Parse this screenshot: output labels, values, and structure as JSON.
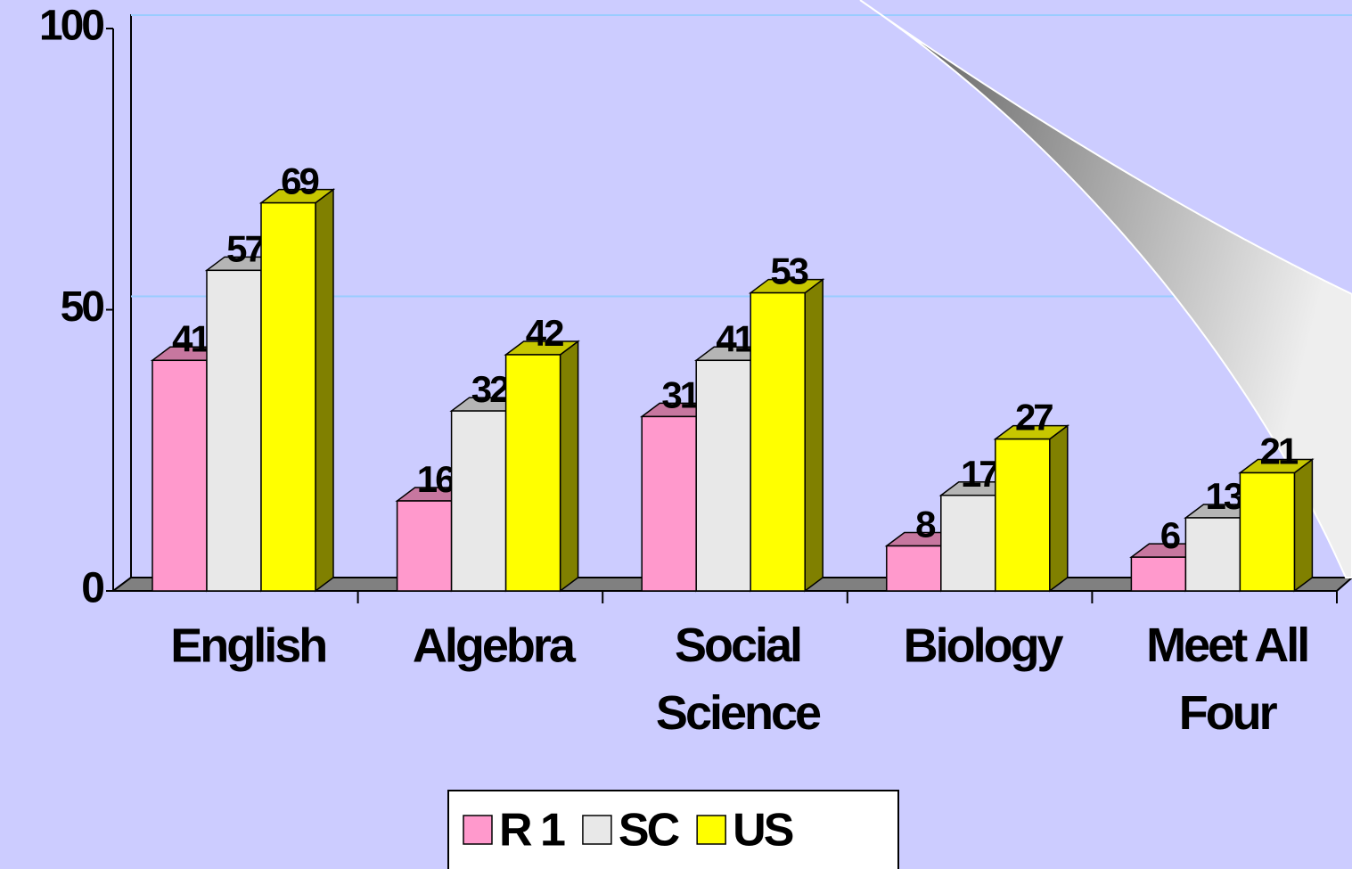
{
  "chart_data": {
    "type": "bar3d",
    "categories": [
      "English",
      "Algebra",
      "Social Science",
      "Biology",
      "Meet All Four"
    ],
    "series": [
      {
        "name": "R 1",
        "color": "#ff99cc",
        "values": [
          41,
          16,
          31,
          8,
          6
        ]
      },
      {
        "name": "SC",
        "color": "#e8e8e8",
        "values": [
          57,
          32,
          41,
          17,
          13
        ]
      },
      {
        "name": "US",
        "color": "#ffff00",
        "values": [
          69,
          42,
          53,
          27,
          21
        ]
      }
    ],
    "ylim": [
      0,
      100
    ],
    "yticks": [
      0,
      50,
      100
    ],
    "grid": true,
    "legend": "bottom"
  }
}
